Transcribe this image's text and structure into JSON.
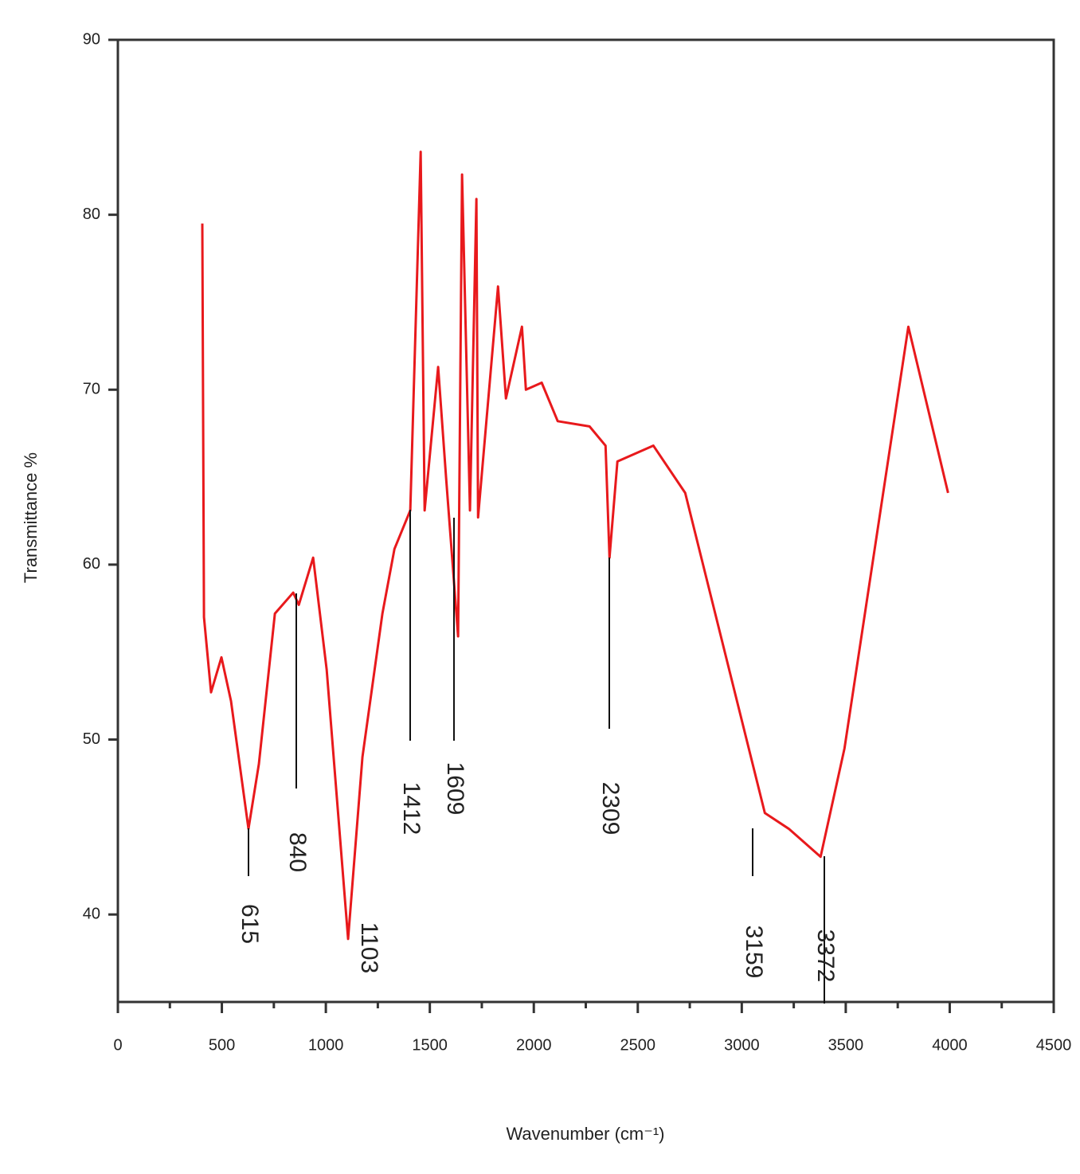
{
  "chart_data": {
    "type": "line",
    "xlabel": "Wavenumber (cm⁻¹)",
    "ylabel": "Transmittance %",
    "xlim": [
      0,
      4500
    ],
    "xticks": [
      0,
      500,
      1000,
      1500,
      2000,
      2500,
      3000,
      3500,
      4000,
      4500
    ],
    "ylim": [
      35,
      90
    ],
    "yticks": [
      40,
      50,
      60,
      70,
      80,
      90
    ],
    "series": [
      {
        "color": "#e8191c",
        "x": [
          406,
          414,
          448,
          498,
          544,
          628,
          678,
          755,
          843,
          870,
          939,
          1004,
          1107,
          1176,
          1272,
          1330,
          1406,
          1456,
          1475,
          1540,
          1578,
          1636,
          1655,
          1693,
          1724,
          1732,
          1828,
          1866,
          1943,
          1962,
          2038,
          2115,
          2268,
          2345,
          2364,
          2402,
          2575,
          2728,
          3111,
          3226,
          3379,
          3494,
          3801,
          3992
        ],
        "values": [
          79.5,
          57.0,
          52.7,
          54.7,
          52.2,
          44.9,
          48.6,
          57.2,
          58.4,
          57.7,
          60.4,
          54.0,
          38.6,
          49.0,
          57.2,
          60.9,
          63.1,
          83.6,
          63.1,
          71.3,
          65.0,
          55.9,
          82.3,
          63.1,
          80.9,
          62.7,
          75.9,
          69.5,
          73.6,
          70.0,
          70.4,
          68.2,
          67.9,
          66.8,
          60.4,
          65.9,
          66.8,
          64.1,
          45.8,
          44.9,
          43.3,
          49.5,
          73.6,
          64.1
        ]
      }
    ],
    "annotations": [
      "615",
      "840",
      "1103",
      "1412",
      "1609",
      "2309",
      "3159",
      "3372"
    ]
  }
}
